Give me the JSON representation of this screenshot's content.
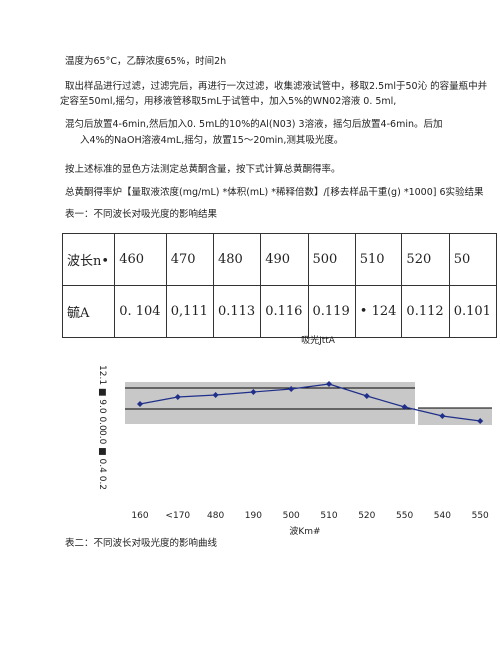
{
  "paragraphs": [
    "温度为65°C，乙醇浓度65%，时间2h",
    "取出样品进行过滤，过滤完后，再进行一次过滤，收集滤液试管中，移取2.5ml于50沁 的容量瓶中并定容至50ml,摇匀，用移液管移取5mL于试管中，加入5%的WN02溶液 0. 5ml,",
    "混匀后放置4-6min,然后加入0. 5mL的10%的Al(N03) 3溶液，摇匀后放置4-6min。后加",
    "入4%的NaOH溶液4mL,摇匀，放置15～20min,测其吸光度。",
    "按上述标准的显色方法测定总黄酮含量，按下式计算总黄酮得率。",
    "总黄酮得率炉【量取液浓度(mg/mL) *体积(mL) *稀释倍数】/[移去样品干重(g) *1000] 6实验结果",
    "表一：不同波长对吸光度的影响结果"
  ],
  "table": {
    "rows": [
      [
        "波长n•",
        "460",
        "470",
        "480",
        "490",
        "500",
        "510",
        "520",
        "50"
      ],
      [
        "毓A",
        "0. 104",
        "0,111",
        "0.113",
        "0.116",
        "0.119",
        "• 124",
        "0.112",
        "0.101"
      ]
    ]
  },
  "chart_data": {
    "type": "line",
    "title": "吸光JttA",
    "x_label": "波Km#",
    "y_tick_text": [
      "12.1 ■ 9.0 0.0",
      "0.0 ■ 0.4 0.2"
    ],
    "categories": [
      "160",
      "<170",
      "480",
      "190",
      "500",
      "510",
      "520",
      "550",
      "540",
      "550"
    ],
    "series": [
      {
        "color": "#1f2f8a",
        "values": [
          0.104,
          0.111,
          0.113,
          0.116,
          0.119,
          0.124,
          0.112,
          0.101,
          0.092,
          0.087
        ]
      }
    ],
    "ylim": [
      0.084,
      0.126
    ]
  },
  "caption": "表二：不同波长对吸光度的影响曲线"
}
